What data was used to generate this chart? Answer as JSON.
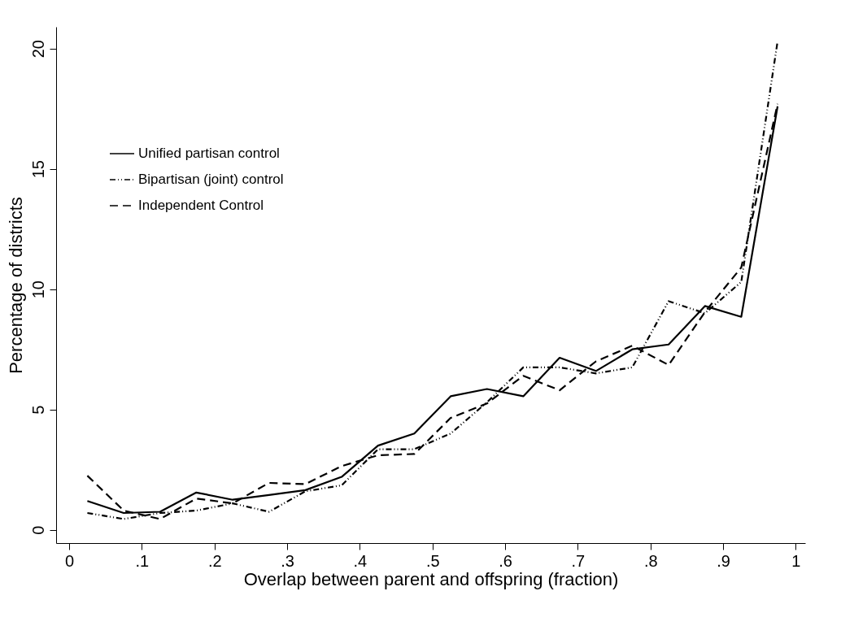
{
  "chart_data": {
    "type": "line",
    "xlabel": "Overlap between parent and offspring (fraction)",
    "ylabel": "Percentage of districts",
    "x": [
      0.025,
      0.075,
      0.125,
      0.175,
      0.225,
      0.275,
      0.325,
      0.375,
      0.425,
      0.475,
      0.525,
      0.575,
      0.625,
      0.675,
      0.725,
      0.775,
      0.825,
      0.875,
      0.925,
      0.975
    ],
    "series": [
      {
        "name": "Unified partisan control",
        "color": "#000000",
        "line_style": "solid",
        "values": [
          1.2,
          0.7,
          0.75,
          1.55,
          1.25,
          1.45,
          1.65,
          2.2,
          3.5,
          4.0,
          5.55,
          5.85,
          5.55,
          7.15,
          6.6,
          7.5,
          7.7,
          9.3,
          8.85,
          17.6
        ]
      },
      {
        "name": "Bipartisan (joint) control",
        "color": "#000000",
        "line_style": "dotted",
        "values": [
          0.7,
          0.45,
          0.7,
          0.8,
          1.1,
          0.75,
          1.6,
          1.85,
          3.35,
          3.35,
          4.0,
          5.3,
          6.75,
          6.75,
          6.5,
          6.75,
          9.5,
          9.0,
          10.3,
          20.3
        ]
      },
      {
        "name": "Independent Control",
        "color": "#000000",
        "line_style": "dashed",
        "values": [
          2.25,
          0.8,
          0.45,
          1.3,
          1.1,
          1.95,
          1.9,
          2.65,
          3.1,
          3.15,
          4.65,
          5.25,
          6.4,
          5.8,
          7.0,
          7.65,
          6.85,
          9.05,
          10.9,
          17.7
        ]
      }
    ],
    "xlim": [
      -0.018,
      1.013
    ],
    "ylim": [
      -0.55,
      20.9
    ],
    "xticks": [
      0,
      {
        "value": 0.1,
        "label": ".1"
      },
      {
        "value": 0.2,
        "label": ".2"
      },
      {
        "value": 0.3,
        "label": ".3"
      },
      {
        "value": 0.4,
        "label": ".4"
      },
      {
        "value": 0.5,
        "label": ".5"
      },
      {
        "value": 0.6,
        "label": ".6"
      },
      {
        "value": 0.7,
        "label": ".7"
      },
      {
        "value": 0.8,
        "label": ".8"
      },
      {
        "value": 0.9,
        "label": ".9"
      },
      1
    ],
    "yticks": [
      0,
      5,
      10,
      15,
      20
    ],
    "legend": "top left",
    "grid": false
  }
}
